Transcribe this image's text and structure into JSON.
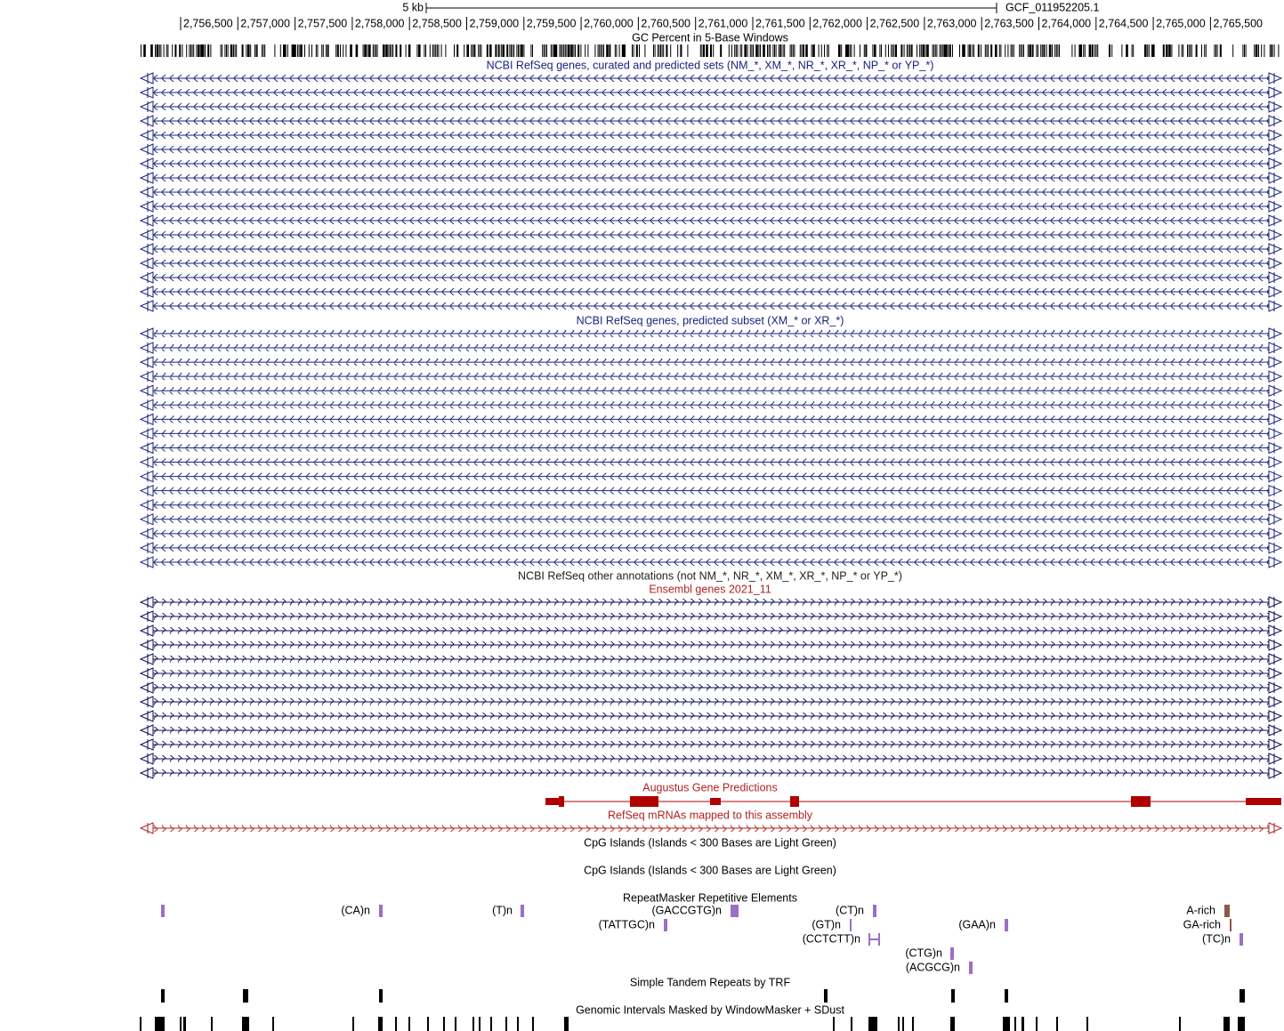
{
  "ruler": {
    "scale_label": "5 kb",
    "assembly": "GCF_011952205.1",
    "ticks": [
      "2,756,500",
      "2,757,000",
      "2,757,500",
      "2,758,000",
      "2,758,500",
      "2,759,000",
      "2,759,500",
      "2,760,000",
      "2,760,500",
      "2,761,000",
      "2,761,500",
      "2,762,000",
      "2,762,500",
      "2,763,000",
      "2,763,500",
      "2,764,000",
      "2,764,500",
      "2,765,000",
      "2,765,500"
    ]
  },
  "tracks": {
    "gc_percent": "GC Percent in 5-Base Windows",
    "refseq_all": "NCBI RefSeq genes, curated and predicted sets (NM_*, XM_*, NR_*, XR_*, NP_* or YP_*)",
    "refseq_predicted": "NCBI RefSeq genes, predicted subset (XM_* or XR_*)",
    "refseq_other": "NCBI RefSeq other annotations (not NM_*, NR_*, XM_*, XR_*, NP_* or YP_*)",
    "ensembl": "Ensembl genes 2021_11",
    "augustus": "Augustus Gene Predictions",
    "refseq_mrna": "RefSeq mRNAs mapped to this assembly",
    "cpg_1": "CpG Islands (Islands < 300 Bases are Light Green)",
    "cpg_2": "CpG Islands (Islands < 300 Bases are Light Green)",
    "repeatmasker": "RepeatMasker Repetitive Elements",
    "trf": "Simple Tandem Repeats by TRF",
    "windowmasker": "Genomic Intervals Masked by WindowMasker + SDust"
  },
  "repeats": [
    "(CA)n",
    "(T)n",
    "(GACCGTG)n",
    "(CT)n",
    "A-rich",
    "(TATTGC)n",
    "(GT)n",
    "(GAA)n",
    "GA-rich",
    "(CCTCTT)n",
    "(TC)n",
    "(CTG)n",
    "(ACGCG)n"
  ]
}
